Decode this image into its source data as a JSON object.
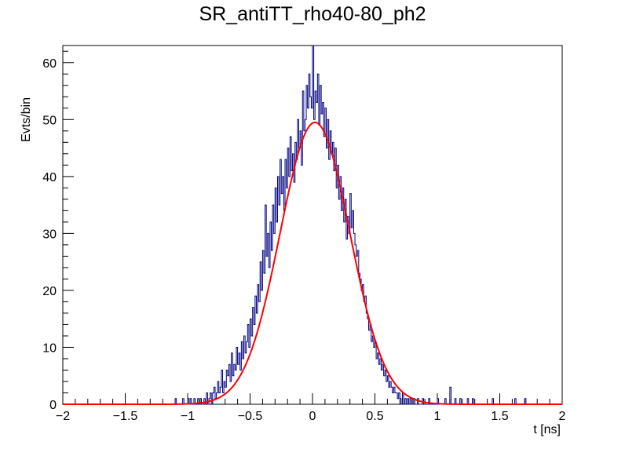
{
  "chart_data": {
    "type": "bar",
    "title": "SR_antiTT_rho40-80_ph2",
    "xlabel": "t [ns]",
    "ylabel": "Evts/bin",
    "xlim": [
      -2,
      2
    ],
    "ylim": [
      0,
      63
    ],
    "x_ticks": [
      -2,
      -1.5,
      -1,
      -0.5,
      0,
      0.5,
      1,
      1.5,
      2
    ],
    "x_tick_labels": [
      "−2",
      "−1.5",
      "−1",
      "−0.5",
      "0",
      "0.5",
      "1",
      "1.5",
      "2"
    ],
    "y_ticks": [
      0,
      10,
      20,
      30,
      40,
      50,
      60
    ],
    "y_tick_labels": [
      "0",
      "10",
      "20",
      "30",
      "40",
      "50",
      "60"
    ],
    "grid": false,
    "legend": "none",
    "bin_width": 0.01,
    "histogram": {
      "name": "",
      "color": "#000080",
      "x_start": -2,
      "counts": [
        0,
        0,
        0,
        0,
        0,
        0,
        0,
        0,
        0,
        0,
        0,
        0,
        0,
        0,
        0,
        0,
        0,
        0,
        0,
        0,
        0,
        0,
        0,
        0,
        0,
        0,
        0,
        0,
        0,
        0,
        0,
        0,
        0,
        0,
        0,
        0,
        0,
        0,
        0,
        0,
        0,
        0,
        0,
        0,
        0,
        0,
        0,
        0,
        0,
        0,
        0,
        0,
        0,
        0,
        0,
        0,
        0,
        0,
        0,
        0,
        0,
        0,
        0,
        0,
        0,
        0,
        0,
        0,
        0,
        0,
        0,
        0,
        0,
        0,
        0,
        0,
        0,
        0,
        0,
        0,
        0,
        0,
        0,
        0,
        0,
        0,
        0,
        0,
        0,
        0,
        0,
        0,
        0,
        0,
        0,
        0,
        0,
        0,
        0,
        0,
        0,
        0,
        0,
        0,
        0,
        0,
        0,
        0,
        0,
        0,
        0,
        0,
        0,
        0,
        0,
        0,
        0,
        0,
        0,
        0,
        0,
        0,
        0,
        0,
        0,
        0,
        0,
        0,
        0,
        0,
        0,
        0,
        0,
        0,
        0,
        0,
        0,
        0,
        0,
        0,
        0,
        0,
        0,
        0,
        0,
        0,
        0,
        0,
        0,
        0,
        0,
        0,
        0,
        0,
        0,
        0,
        0,
        0,
        0,
        0,
        0,
        0,
        0,
        0,
        0,
        0,
        0,
        0,
        0,
        0,
        0,
        0,
        0,
        0,
        0,
        0,
        0,
        0,
        0,
        0,
        0,
        0,
        0,
        0,
        0,
        0,
        0,
        0,
        0,
        0,
        0,
        0,
        0,
        0,
        0,
        0,
        0,
        0,
        0,
        0,
        0,
        0,
        0,
        0,
        0,
        0,
        0,
        0,
        0,
        0,
        0,
        0,
        0,
        0,
        0,
        0,
        0,
        0,
        0,
        0,
        0,
        0,
        0,
        0,
        0,
        0,
        0,
        0,
        0,
        0,
        0,
        0,
        0,
        0,
        0,
        0,
        0,
        0,
        0,
        0,
        0,
        0,
        0,
        0,
        0,
        0,
        0,
        0,
        0,
        0,
        0,
        0,
        0,
        0,
        0,
        0,
        0,
        0,
        0,
        0,
        0,
        0,
        0,
        0,
        0,
        0,
        0,
        0,
        0,
        0,
        0,
        0,
        0,
        0,
        0,
        0,
        0,
        0,
        0,
        0,
        0,
        0,
        0,
        0,
        0,
        0,
        0,
        0,
        0,
        0,
        0,
        0,
        0,
        0,
        0,
        0,
        0,
        0,
        0,
        0,
        0,
        0,
        0,
        0,
        0,
        0,
        0,
        0,
        0,
        0,
        0,
        0,
        0,
        0,
        0,
        0,
        0,
        0,
        0,
        0,
        0,
        0,
        0,
        0,
        0,
        0,
        0,
        0,
        0,
        0,
        0,
        0,
        0,
        0,
        0,
        0,
        0,
        0,
        0,
        0,
        0,
        0,
        0,
        0,
        0,
        0,
        0,
        0,
        0,
        0,
        0,
        0,
        0,
        0,
        0,
        0,
        0,
        0,
        0,
        0,
        0,
        0,
        0,
        0,
        0,
        0,
        0,
        0,
        0,
        0,
        0,
        0,
        0,
        0,
        0,
        0,
        0,
        0,
        0,
        0,
        0,
        0,
        0,
        0,
        0,
        0,
        0,
        0,
        0,
        0,
        0,
        0,
        0,
        0,
        0,
        0,
        0,
        0,
        0,
        0
      ],
      "overrides": [
        [
          -1.1,
          1
        ],
        [
          -1.04,
          1
        ],
        [
          -1.0,
          1
        ],
        [
          -0.98,
          1
        ],
        [
          -0.95,
          1
        ],
        [
          -0.92,
          1
        ],
        [
          -0.9,
          1
        ],
        [
          -0.87,
          1
        ],
        [
          -0.85,
          2
        ],
        [
          -0.83,
          1
        ],
        [
          -0.82,
          2
        ],
        [
          -0.8,
          2
        ],
        [
          -0.79,
          3
        ],
        [
          -0.78,
          1
        ],
        [
          -0.77,
          2
        ],
        [
          -0.76,
          4
        ],
        [
          -0.75,
          2
        ],
        [
          -0.74,
          3
        ],
        [
          -0.73,
          6
        ],
        [
          -0.72,
          2
        ],
        [
          -0.71,
          4
        ],
        [
          -0.7,
          3
        ],
        [
          -0.69,
          6
        ],
        [
          -0.68,
          5
        ],
        [
          -0.67,
          7
        ],
        [
          -0.66,
          4
        ],
        [
          -0.65,
          9
        ],
        [
          -0.64,
          5
        ],
        [
          -0.63,
          7
        ],
        [
          -0.62,
          6
        ],
        [
          -0.61,
          10
        ],
        [
          -0.6,
          7
        ],
        [
          -0.59,
          9
        ],
        [
          -0.58,
          6
        ],
        [
          -0.57,
          11
        ],
        [
          -0.56,
          8
        ],
        [
          -0.55,
          12
        ],
        [
          -0.54,
          9
        ],
        [
          -0.53,
          11
        ],
        [
          -0.52,
          14
        ],
        [
          -0.51,
          10
        ],
        [
          -0.5,
          15
        ],
        [
          -0.49,
          12
        ],
        [
          -0.48,
          17
        ],
        [
          -0.47,
          14
        ],
        [
          -0.46,
          19
        ],
        [
          -0.45,
          16
        ],
        [
          -0.44,
          21
        ],
        [
          -0.43,
          18
        ],
        [
          -0.42,
          25
        ],
        [
          -0.41,
          20
        ],
        [
          -0.4,
          27
        ],
        [
          -0.39,
          23
        ],
        [
          -0.38,
          35
        ],
        [
          -0.37,
          26
        ],
        [
          -0.36,
          30
        ],
        [
          -0.35,
          24
        ],
        [
          -0.34,
          32
        ],
        [
          -0.33,
          27
        ],
        [
          -0.32,
          35
        ],
        [
          -0.31,
          30
        ],
        [
          -0.3,
          38
        ],
        [
          -0.29,
          32
        ],
        [
          -0.28,
          40
        ],
        [
          -0.27,
          35
        ],
        [
          -0.26,
          43
        ],
        [
          -0.25,
          37
        ],
        [
          -0.24,
          40
        ],
        [
          -0.23,
          34
        ],
        [
          -0.22,
          43
        ],
        [
          -0.21,
          38
        ],
        [
          -0.2,
          45
        ],
        [
          -0.19,
          40
        ],
        [
          -0.18,
          47
        ],
        [
          -0.17,
          41
        ],
        [
          -0.16,
          44
        ],
        [
          -0.15,
          39
        ],
        [
          -0.14,
          46
        ],
        [
          -0.13,
          43
        ],
        [
          -0.12,
          50
        ],
        [
          -0.11,
          45
        ],
        [
          -0.1,
          48
        ],
        [
          -0.09,
          42
        ],
        [
          -0.08,
          55
        ],
        [
          -0.07,
          48
        ],
        [
          -0.06,
          50
        ],
        [
          -0.05,
          56
        ],
        [
          -0.04,
          52
        ],
        [
          -0.03,
          58
        ],
        [
          -0.02,
          54
        ],
        [
          -0.01,
          52
        ],
        [
          0.0,
          63
        ],
        [
          0.01,
          50
        ],
        [
          0.02,
          55
        ],
        [
          0.03,
          53
        ],
        [
          0.04,
          58
        ],
        [
          0.05,
          49
        ],
        [
          0.06,
          56
        ],
        [
          0.07,
          51
        ],
        [
          0.08,
          53
        ],
        [
          0.09,
          47
        ],
        [
          0.1,
          52
        ],
        [
          0.11,
          45
        ],
        [
          0.12,
          50
        ],
        [
          0.13,
          43
        ],
        [
          0.14,
          48
        ],
        [
          0.15,
          44
        ],
        [
          0.16,
          46
        ],
        [
          0.17,
          41
        ],
        [
          0.18,
          45
        ],
        [
          0.19,
          38
        ],
        [
          0.2,
          42
        ],
        [
          0.21,
          36
        ],
        [
          0.22,
          40
        ],
        [
          0.23,
          34
        ],
        [
          0.24,
          38
        ],
        [
          0.25,
          32
        ],
        [
          0.26,
          36
        ],
        [
          0.27,
          29
        ],
        [
          0.28,
          33
        ],
        [
          0.29,
          30
        ],
        [
          0.3,
          37
        ],
        [
          0.31,
          31
        ],
        [
          0.32,
          34
        ],
        [
          0.33,
          30
        ],
        [
          0.34,
          28
        ],
        [
          0.35,
          26
        ],
        [
          0.36,
          27
        ],
        [
          0.37,
          23
        ],
        [
          0.38,
          22
        ],
        [
          0.39,
          20
        ],
        [
          0.4,
          21
        ],
        [
          0.41,
          18
        ],
        [
          0.42,
          19
        ],
        [
          0.43,
          16
        ],
        [
          0.44,
          15
        ],
        [
          0.45,
          13
        ],
        [
          0.46,
          14
        ],
        [
          0.47,
          11
        ],
        [
          0.48,
          12
        ],
        [
          0.49,
          10
        ],
        [
          0.5,
          11
        ],
        [
          0.51,
          8
        ],
        [
          0.52,
          9
        ],
        [
          0.53,
          7
        ],
        [
          0.54,
          8
        ],
        [
          0.55,
          6
        ],
        [
          0.56,
          7
        ],
        [
          0.57,
          5
        ],
        [
          0.58,
          6
        ],
        [
          0.59,
          4
        ],
        [
          0.6,
          5
        ],
        [
          0.61,
          3
        ],
        [
          0.62,
          4
        ],
        [
          0.63,
          3
        ],
        [
          0.64,
          2
        ],
        [
          0.65,
          3
        ],
        [
          0.66,
          2
        ],
        [
          0.67,
          2
        ],
        [
          0.68,
          1
        ],
        [
          0.69,
          2
        ],
        [
          0.7,
          1
        ],
        [
          0.72,
          2
        ],
        [
          0.74,
          1
        ],
        [
          0.76,
          1
        ],
        [
          0.78,
          1
        ],
        [
          0.81,
          1
        ],
        [
          0.84,
          1
        ],
        [
          0.88,
          1
        ],
        [
          0.93,
          1
        ],
        [
          1.0,
          1
        ],
        [
          1.06,
          1
        ],
        [
          1.1,
          3
        ],
        [
          1.14,
          1
        ],
        [
          1.18,
          1
        ],
        [
          1.24,
          1
        ],
        [
          1.28,
          1
        ],
        [
          1.44,
          1
        ],
        [
          1.62,
          1
        ],
        [
          1.7,
          1
        ]
      ]
    },
    "fit": {
      "name": "",
      "color": "#ff0000",
      "type": "gaussian",
      "amplitude": 49.5,
      "mean": 0.02,
      "sigma": 0.28,
      "range": [
        -2,
        2
      ]
    }
  }
}
